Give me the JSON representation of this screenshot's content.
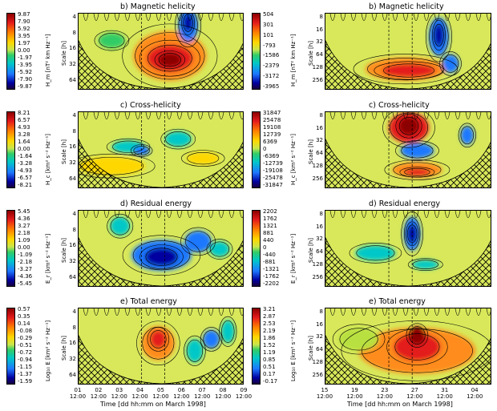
{
  "chart_data": [
    {
      "type": "heatmap",
      "title": "b) Magnetic helicity",
      "ylabel": "Scale [h]",
      "yticks": [
        "4",
        "8",
        "16",
        "32",
        "64"
      ],
      "colorbar_label": "H_m [nT² km Hz⁻¹]",
      "colorbar_ticks": [
        "9.87",
        "7.90",
        "5.92",
        "3.95",
        "1.97",
        "0.00",
        "-1.97",
        "-3.95",
        "-5.92",
        "-7.90",
        "-9.87"
      ]
    },
    {
      "type": "heatmap",
      "title": "b) Magnetic helicity",
      "ylabel": "Scale [h]",
      "yticks": [
        "8",
        "16",
        "32",
        "64",
        "128",
        "256"
      ],
      "colorbar_label": "H_m [nT² km Hz⁻¹]",
      "colorbar_ticks": [
        "504",
        "301",
        "101",
        "-793",
        "-1586",
        "-2379",
        "-3172",
        "-3965"
      ]
    },
    {
      "type": "heatmap",
      "title": "c) Cross-helicity",
      "ylabel": "Scale [h]",
      "yticks": [
        "4",
        "8",
        "16",
        "32",
        "64"
      ],
      "colorbar_label": "H_c [km² s⁻² Hz⁻¹]",
      "colorbar_ticks": [
        "8.21",
        "6.57",
        "4.93",
        "3.28",
        "1.64",
        "0.00",
        "-1.64",
        "-3.28",
        "-4.93",
        "-6.57",
        "-8.21"
      ]
    },
    {
      "type": "heatmap",
      "title": "c) Cross-helicity",
      "ylabel": "Scale [h]",
      "yticks": [
        "8",
        "16",
        "32",
        "64",
        "128",
        "256"
      ],
      "colorbar_label": "H_c [km² s⁻² Hz⁻¹]",
      "colorbar_ticks": [
        "31847",
        "25478",
        "19108",
        "12739",
        "6369",
        "0",
        "-6369",
        "-12739",
        "-19108",
        "-25478",
        "-31847"
      ]
    },
    {
      "type": "heatmap",
      "title": "d) Residual energy",
      "ylabel": "Scale [h]",
      "yticks": [
        "4",
        "8",
        "16",
        "32",
        "64"
      ],
      "colorbar_label": "E_r [km² s⁻² Hz⁻¹]",
      "colorbar_ticks": [
        "5.45",
        "4.36",
        "3.27",
        "2.18",
        "1.09",
        "0.00",
        "-1.09",
        "-2.18",
        "-3.27",
        "-4.36",
        "-5.45"
      ]
    },
    {
      "type": "heatmap",
      "title": "d) Residual energy",
      "ylabel": "Scale [h]",
      "yticks": [
        "8",
        "16",
        "32",
        "64",
        "128",
        "256"
      ],
      "colorbar_label": "E_r [km² s⁻² Hz⁻¹]",
      "colorbar_ticks": [
        "2202",
        "1762",
        "1321",
        "881",
        "440",
        "0",
        "-440",
        "-881",
        "-1321",
        "-1762",
        "-2202"
      ]
    },
    {
      "type": "heatmap",
      "title": "e) Total energy",
      "ylabel": "Scale [h]",
      "yticks": [
        "4",
        "8",
        "16",
        "32",
        "64"
      ],
      "colorbar_label": "Log₁₀ E [km² s⁻² Hz⁻¹]",
      "colorbar_ticks": [
        "0.57",
        "0.35",
        "0.14",
        "-0.08",
        "-0.29",
        "-0.51",
        "-0.72",
        "-0.94",
        "-1.15",
        "-1.37",
        "-1.59"
      ],
      "xticks": [
        "01\n12:00",
        "02\n12:00",
        "03\n12:00",
        "04\n12:00",
        "05\n12:00",
        "06\n12:00",
        "07\n12:00",
        "08\n12:00",
        "09\n12:00"
      ],
      "xlabel": "Time [dd hh:mm on March 1998]"
    },
    {
      "type": "heatmap",
      "title": "e) Total energy",
      "ylabel": "Scale [h]",
      "yticks": [
        "8",
        "16",
        "32",
        "64",
        "128",
        "256"
      ],
      "colorbar_label": "Log₁₀ E [km² s⁻² Hz⁻¹]",
      "colorbar_ticks": [
        "3.21",
        "2.87",
        "2.53",
        "2.19",
        "1.86",
        "1.52",
        "1.19",
        "0.85",
        "0.51",
        "0.17",
        "-0.17"
      ],
      "xticks": [
        "15\n12:00",
        "19\n12:00",
        "23\n12:00",
        "27\n12:00",
        "31\n12:00",
        "04\n12:00"
      ],
      "xlabel": "Time [dd hh:mm on March 1998]"
    }
  ],
  "colors": {
    "background": "#d8e85a",
    "hatch": "#000000"
  }
}
